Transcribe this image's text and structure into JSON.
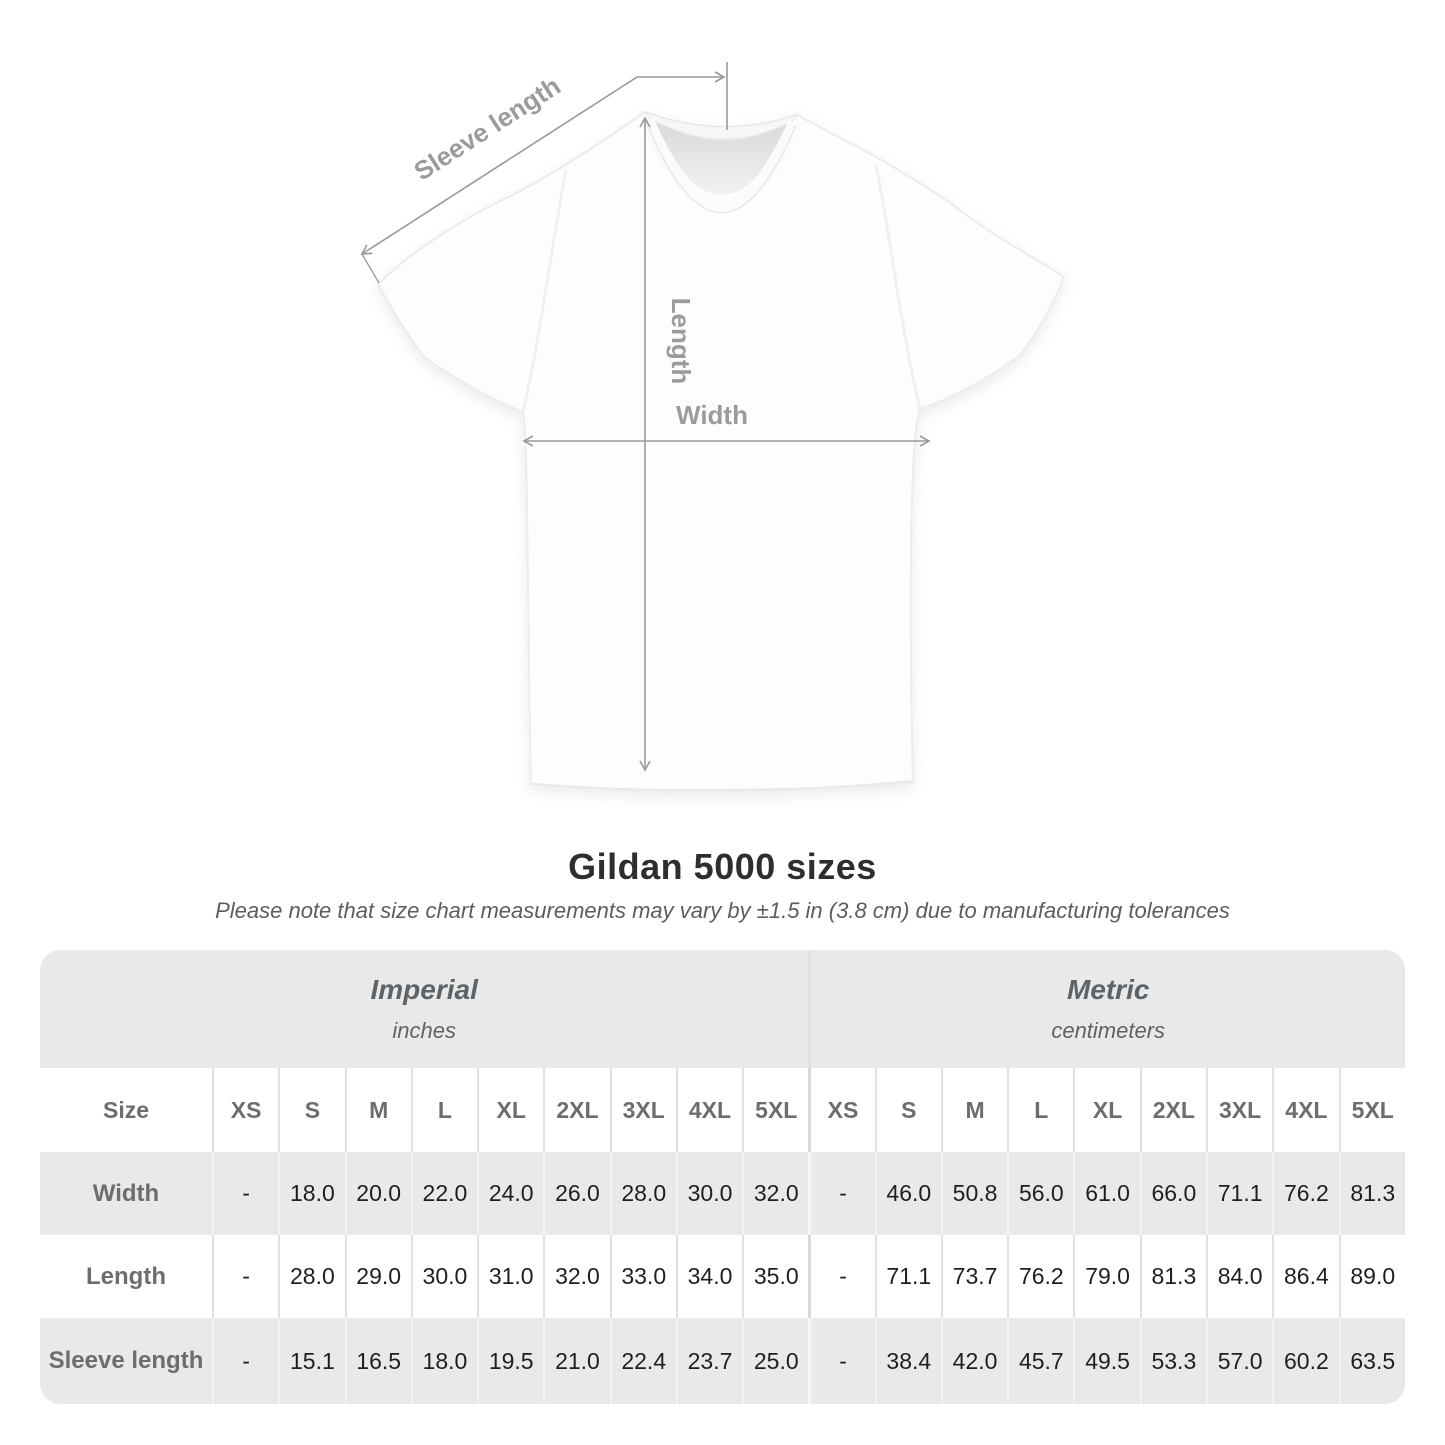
{
  "diagram": {
    "labels": {
      "sleeve_length": "Sleeve length",
      "length": "Length",
      "width": "Width"
    }
  },
  "header": {
    "title": "Gildan 5000 sizes",
    "subtitle": "Please note that size chart measurements may vary by ±1.5 in (3.8 cm) due to manufacturing tolerances"
  },
  "table": {
    "size_header": "Size",
    "unit_groups": [
      {
        "label": "Imperial",
        "sublabel": "inches"
      },
      {
        "label": "Metric",
        "sublabel": "centimeters"
      }
    ],
    "sizes": [
      "XS",
      "S",
      "M",
      "L",
      "XL",
      "2XL",
      "3XL",
      "4XL",
      "5XL"
    ],
    "rows": [
      {
        "label": "Width",
        "imperial": [
          "-",
          "18.0",
          "20.0",
          "22.0",
          "24.0",
          "26.0",
          "28.0",
          "30.0",
          "32.0"
        ],
        "metric": [
          "-",
          "46.0",
          "50.8",
          "56.0",
          "61.0",
          "66.0",
          "71.1",
          "76.2",
          "81.3"
        ]
      },
      {
        "label": "Length",
        "imperial": [
          "-",
          "28.0",
          "29.0",
          "30.0",
          "31.0",
          "32.0",
          "33.0",
          "34.0",
          "35.0"
        ],
        "metric": [
          "-",
          "71.1",
          "73.7",
          "76.2",
          "79.0",
          "81.3",
          "84.0",
          "86.4",
          "89.0"
        ]
      },
      {
        "label": "Sleeve length",
        "imperial": [
          "-",
          "15.1",
          "16.5",
          "18.0",
          "19.5",
          "21.0",
          "22.4",
          "23.7",
          "25.0"
        ],
        "metric": [
          "-",
          "38.4",
          "42.0",
          "45.7",
          "49.5",
          "53.3",
          "57.0",
          "60.2",
          "63.5"
        ]
      }
    ]
  },
  "chart_data": {
    "type": "table",
    "title": "Gildan 5000 sizes",
    "tolerance_note": "±1.5 in (3.8 cm)",
    "sizes": [
      "XS",
      "S",
      "M",
      "L",
      "XL",
      "2XL",
      "3XL",
      "4XL",
      "5XL"
    ],
    "measurements": [
      {
        "name": "Width",
        "inches": [
          null,
          18.0,
          20.0,
          22.0,
          24.0,
          26.0,
          28.0,
          30.0,
          32.0
        ],
        "centimeters": [
          null,
          46.0,
          50.8,
          56.0,
          61.0,
          66.0,
          71.1,
          76.2,
          81.3
        ]
      },
      {
        "name": "Length",
        "inches": [
          null,
          28.0,
          29.0,
          30.0,
          31.0,
          32.0,
          33.0,
          34.0,
          35.0
        ],
        "centimeters": [
          null,
          71.1,
          73.7,
          76.2,
          79.0,
          81.3,
          84.0,
          86.4,
          89.0
        ]
      },
      {
        "name": "Sleeve length",
        "inches": [
          null,
          15.1,
          16.5,
          18.0,
          19.5,
          21.0,
          22.4,
          23.7,
          25.0
        ],
        "centimeters": [
          null,
          38.4,
          42.0,
          45.7,
          49.5,
          53.3,
          57.0,
          60.2,
          63.5
        ]
      }
    ]
  },
  "colors": {
    "dimension_gray": "#9a9a9a",
    "stripe_gray": "#e9e9e9",
    "label_gray": "#6d6d6d",
    "value_dark": "#1f1f1f"
  }
}
